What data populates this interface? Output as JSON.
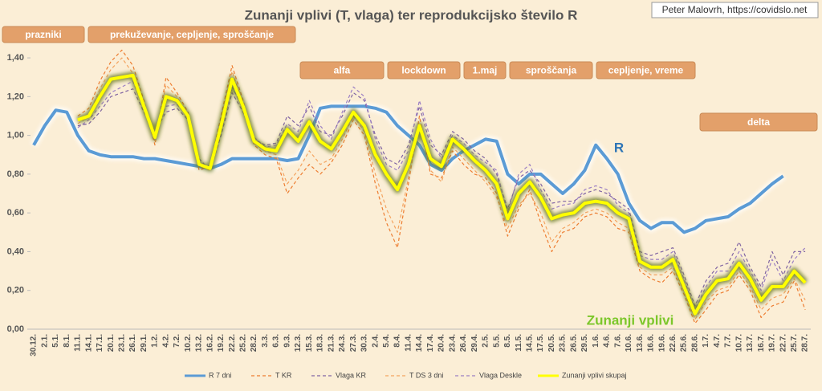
{
  "chart_data": {
    "type": "line",
    "title": "Zunanji vplivi (T, vlaga) ter reprodukcijsko število R",
    "credit": "Peter Malovrh, https://covidslo.net",
    "categories": [
      "30.12.",
      "2.1.",
      "5.1.",
      "8.1.",
      "11.1.",
      "14.1.",
      "17.1.",
      "20.1.",
      "23.1.",
      "26.1.",
      "29.1.",
      "1.2.",
      "4.2.",
      "7.2.",
      "10.2.",
      "13.2.",
      "16.2.",
      "19.2.",
      "22.2.",
      "25.2.",
      "28.2.",
      "3.3.",
      "6.3.",
      "9.3.",
      "12.3.",
      "15.3.",
      "18.3.",
      "21.3.",
      "24.3.",
      "27.3.",
      "30.3.",
      "2.4.",
      "5.4.",
      "8.4.",
      "11.4.",
      "14.4.",
      "17.4.",
      "20.4.",
      "23.4.",
      "26.4.",
      "29.4.",
      "2.5.",
      "5.5.",
      "8.5.",
      "11.5.",
      "14.5.",
      "17.5.",
      "20.5.",
      "23.5.",
      "26.5.",
      "29.5.",
      "1.6.",
      "4.6.",
      "7.6.",
      "10.6.",
      "13.6.",
      "16.6.",
      "19.6.",
      "22.6.",
      "25.6.",
      "28.6.",
      "1.7.",
      "4.7.",
      "7.7.",
      "10.7.",
      "13.7.",
      "16.7.",
      "19.7.",
      "22.7.",
      "25.7.",
      "28.7."
    ],
    "ylim": [
      0,
      1.45
    ],
    "yticks": [
      {
        "value": 0,
        "label": "0,00"
      },
      {
        "value": 0.2,
        "label": "0,20"
      },
      {
        "value": 0.4,
        "label": "0,40"
      },
      {
        "value": 0.6,
        "label": "0,60"
      },
      {
        "value": 0.8,
        "label": "0,80"
      },
      {
        "value": 1,
        "label": "1,00"
      },
      {
        "value": 1.2,
        "label": "1,20"
      },
      {
        "value": 1.4,
        "label": "1,40"
      }
    ],
    "grid": false,
    "legend": "bottom",
    "series": [
      {
        "name": "R 7 dni",
        "color": "#5b9bd5",
        "dashed": false,
        "values": [
          0.95,
          1.05,
          1.13,
          1.12,
          1.0,
          0.92,
          0.9,
          0.89,
          0.89,
          0.89,
          0.88,
          0.88,
          0.87,
          0.86,
          0.85,
          0.84,
          0.83,
          0.85,
          0.88,
          0.88,
          0.88,
          0.88,
          0.88,
          0.87,
          0.88,
          1.0,
          1.14,
          1.15,
          1.15,
          1.15,
          1.15,
          1.14,
          1.12,
          1.05,
          1.0,
          0.95,
          0.85,
          0.82,
          0.88,
          0.92,
          0.95,
          0.98,
          0.97,
          0.8,
          0.75,
          0.8,
          0.8,
          0.75,
          0.7,
          0.75,
          0.82,
          0.95,
          0.88,
          0.8,
          0.65,
          0.56,
          0.52,
          0.55,
          0.55,
          0.5,
          0.52,
          0.56,
          0.57,
          0.58,
          0.62,
          0.65,
          0.7,
          0.75,
          0.79,
          null,
          null
        ]
      },
      {
        "name": "T KR",
        "color": "#ed7d31",
        "dashed": true,
        "values": [
          null,
          null,
          null,
          null,
          1.1,
          1.14,
          1.28,
          1.38,
          1.44,
          1.36,
          1.18,
          0.95,
          1.3,
          1.22,
          1.12,
          0.82,
          0.84,
          1.1,
          1.36,
          1.18,
          0.95,
          0.9,
          0.88,
          0.7,
          0.78,
          0.85,
          0.8,
          0.86,
          0.95,
          1.08,
          1.0,
          0.75,
          0.55,
          0.42,
          0.75,
          1.1,
          0.8,
          0.78,
          0.92,
          0.85,
          0.8,
          0.78,
          0.7,
          0.48,
          0.62,
          0.72,
          0.55,
          0.4,
          0.5,
          0.52,
          0.58,
          0.6,
          0.58,
          0.52,
          0.5,
          0.3,
          0.26,
          0.24,
          0.3,
          0.18,
          0.03,
          0.1,
          0.18,
          0.2,
          0.28,
          0.2,
          0.06,
          0.12,
          0.14,
          0.25,
          0.1
        ]
      },
      {
        "name": "Vlaga KR",
        "color": "#8064a2",
        "dashed": true,
        "values": [
          null,
          null,
          null,
          null,
          1.05,
          1.06,
          1.12,
          1.2,
          1.22,
          1.24,
          1.12,
          1.02,
          1.12,
          1.14,
          1.08,
          0.88,
          0.82,
          1.0,
          1.22,
          1.12,
          0.98,
          0.95,
          0.96,
          1.1,
          1.05,
          1.15,
          1.02,
          1.0,
          1.1,
          1.22,
          1.18,
          1.0,
          0.88,
          0.85,
          0.95,
          1.15,
          0.95,
          0.9,
          1.02,
          0.98,
          0.92,
          0.88,
          0.8,
          0.62,
          0.78,
          0.82,
          0.75,
          0.65,
          0.66,
          0.66,
          0.7,
          0.72,
          0.7,
          0.66,
          0.62,
          0.4,
          0.38,
          0.4,
          0.42,
          0.28,
          0.12,
          0.25,
          0.32,
          0.34,
          0.45,
          0.32,
          0.22,
          0.4,
          0.28,
          0.4,
          0.4
        ]
      },
      {
        "name": "T DS 3 dni",
        "color": "#f4a460",
        "dashed": true,
        "values": [
          null,
          null,
          null,
          null,
          1.06,
          1.1,
          1.24,
          1.34,
          1.4,
          1.32,
          1.14,
          0.97,
          1.26,
          1.2,
          1.08,
          0.84,
          0.82,
          1.08,
          1.33,
          1.16,
          0.96,
          0.92,
          0.9,
          0.75,
          0.82,
          0.92,
          0.85,
          0.88,
          0.98,
          1.1,
          1.02,
          0.8,
          0.62,
          0.5,
          0.78,
          1.05,
          0.82,
          0.76,
          0.94,
          0.88,
          0.82,
          0.76,
          0.68,
          0.52,
          0.64,
          0.7,
          0.6,
          0.45,
          0.52,
          0.55,
          0.6,
          0.62,
          0.6,
          0.55,
          0.52,
          0.32,
          0.28,
          0.28,
          0.32,
          0.2,
          0.05,
          0.14,
          0.2,
          0.22,
          0.3,
          0.22,
          0.1,
          0.16,
          0.18,
          0.26,
          0.15
        ]
      },
      {
        "name": "Vlaga Deskle",
        "color": "#9b7fc4",
        "dashed": true,
        "values": [
          null,
          null,
          null,
          null,
          1.04,
          1.08,
          1.15,
          1.22,
          1.25,
          1.28,
          1.14,
          1.0,
          1.15,
          1.16,
          1.1,
          0.86,
          0.84,
          1.02,
          1.25,
          1.14,
          0.99,
          0.94,
          0.95,
          1.06,
          1.02,
          1.18,
          1.05,
          0.98,
          1.12,
          1.25,
          1.2,
          0.98,
          0.85,
          0.82,
          0.92,
          1.18,
          0.98,
          0.88,
          1.0,
          0.96,
          0.9,
          0.86,
          0.82,
          0.6,
          0.8,
          0.85,
          0.72,
          0.62,
          0.64,
          0.65,
          0.72,
          0.74,
          0.72,
          0.64,
          0.6,
          0.38,
          0.36,
          0.36,
          0.4,
          0.26,
          0.1,
          0.22,
          0.3,
          0.3,
          0.4,
          0.3,
          0.2,
          0.36,
          0.25,
          0.36,
          0.42
        ]
      },
      {
        "name": "Zunanji vplivi skupaj",
        "color": "#ffff00",
        "dashed": false,
        "values": [
          null,
          null,
          null,
          null,
          1.08,
          1.1,
          1.2,
          1.29,
          1.3,
          1.31,
          1.15,
          0.99,
          1.2,
          1.18,
          1.1,
          0.85,
          0.83,
          1.05,
          1.29,
          1.15,
          0.97,
          0.93,
          0.92,
          1.03,
          0.97,
          1.07,
          0.97,
          0.93,
          1.02,
          1.12,
          1.05,
          0.9,
          0.8,
          0.72,
          0.85,
          1.05,
          0.88,
          0.84,
          0.98,
          0.93,
          0.87,
          0.82,
          0.75,
          0.57,
          0.7,
          0.76,
          0.68,
          0.57,
          0.59,
          0.6,
          0.65,
          0.66,
          0.65,
          0.6,
          0.57,
          0.35,
          0.32,
          0.32,
          0.36,
          0.22,
          0.08,
          0.18,
          0.25,
          0.26,
          0.34,
          0.26,
          0.15,
          0.22,
          0.22,
          0.3,
          0.24
        ]
      }
    ],
    "annotations": [
      "prazniki",
      "prekuževanje, cepljenje, sproščanje",
      "alfa",
      "lockdown",
      "1.maj",
      "sproščanja",
      "cepljenje, vreme",
      "delta"
    ],
    "series_labels": [
      "R",
      "Zunanji vplivi"
    ]
  }
}
